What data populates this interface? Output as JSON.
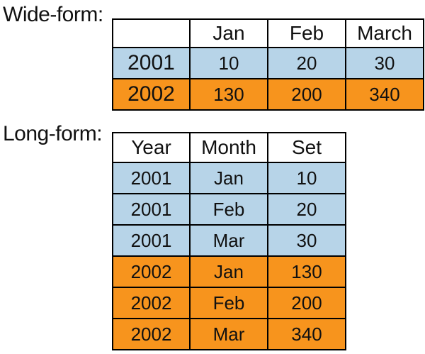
{
  "colors": {
    "blue_row": "#b7d4e8",
    "orange_row": "#f7941d",
    "header_row": "#ffffff",
    "border": "#000000"
  },
  "wide_form": {
    "label": "Wide-form:",
    "columns": [
      "",
      "Jan",
      "Feb",
      "March"
    ],
    "rows": [
      {
        "year": "2001",
        "values": [
          "10",
          "20",
          "30"
        ],
        "color": "blue"
      },
      {
        "year": "2002",
        "values": [
          "130",
          "200",
          "340"
        ],
        "color": "orange"
      }
    ]
  },
  "long_form": {
    "label": "Long-form:",
    "columns": [
      "Year",
      "Month",
      "Set"
    ],
    "rows": [
      {
        "cells": [
          "2001",
          "Jan",
          "10"
        ],
        "color": "blue"
      },
      {
        "cells": [
          "2001",
          "Feb",
          "20"
        ],
        "color": "blue"
      },
      {
        "cells": [
          "2001",
          "Mar",
          "30"
        ],
        "color": "blue"
      },
      {
        "cells": [
          "2002",
          "Jan",
          "130"
        ],
        "color": "orange"
      },
      {
        "cells": [
          "2002",
          "Feb",
          "200"
        ],
        "color": "orange"
      },
      {
        "cells": [
          "2002",
          "Mar",
          "340"
        ],
        "color": "orange"
      }
    ]
  }
}
